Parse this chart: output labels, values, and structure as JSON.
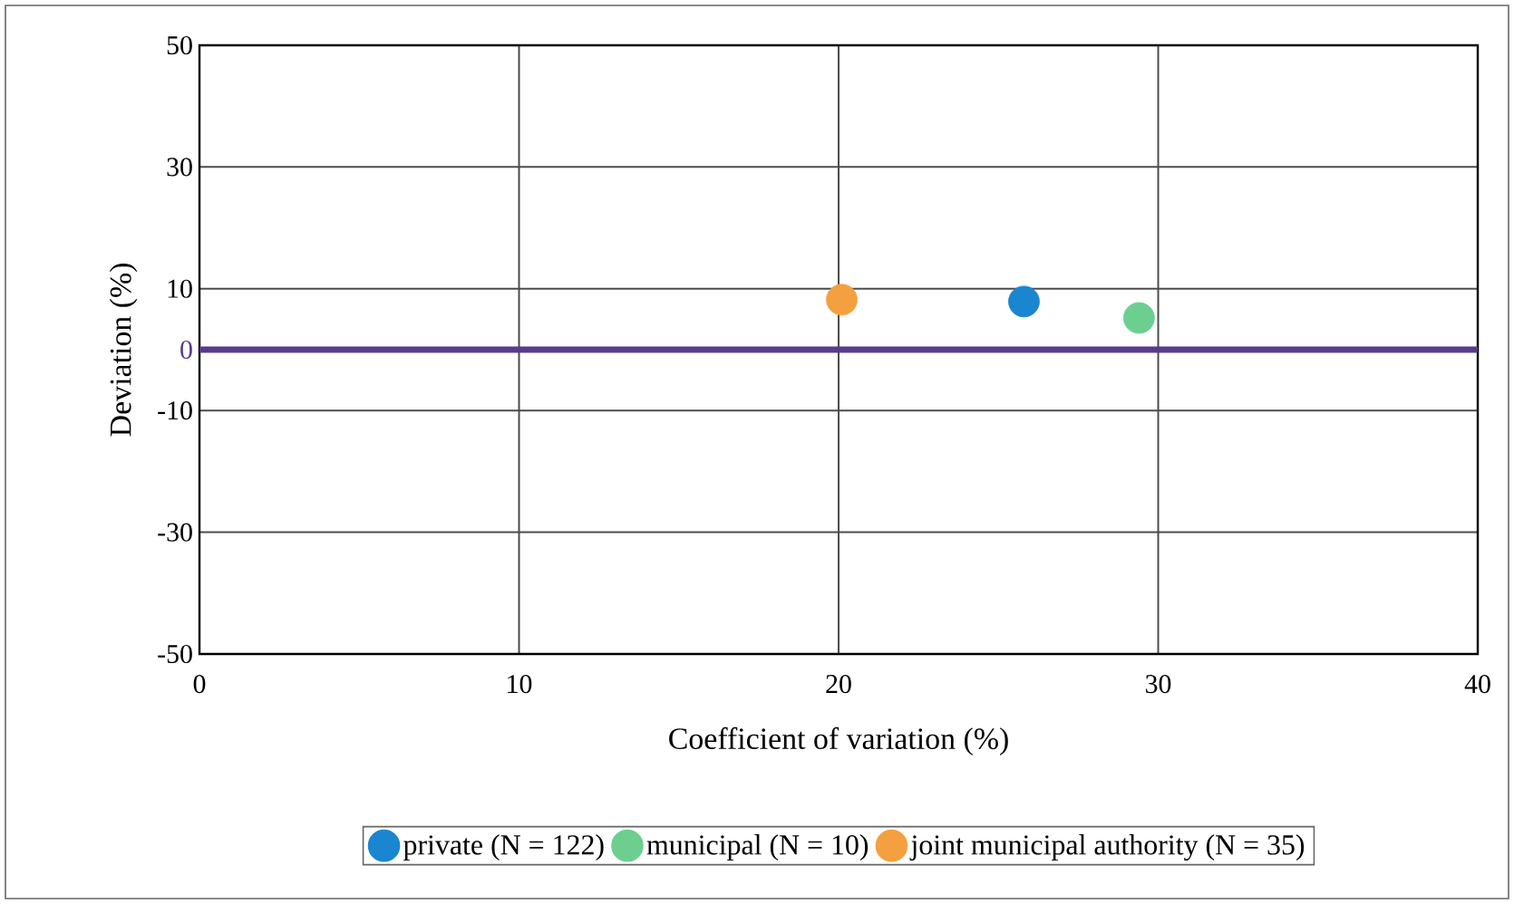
{
  "chart_data": {
    "type": "scatter",
    "xlabel": "Coefficient of variation (%)",
    "ylabel": "Deviation (%)",
    "xlim": [
      0,
      40
    ],
    "ylim": [
      -50,
      50
    ],
    "xticks": [
      0,
      10,
      20,
      30,
      40
    ],
    "yticks": [
      -50,
      -30,
      -10,
      10,
      30,
      50
    ],
    "grid": true,
    "legend": "bottom",
    "series": [
      {
        "name": "private (N = 122)",
        "color": "#1a86d0",
        "x": [
          25.8
        ],
        "values": [
          7.9
        ]
      },
      {
        "name": "municipal (N = 10)",
        "color": "#6ccf8f",
        "x": [
          29.4
        ],
        "values": [
          5.2
        ]
      },
      {
        "name": "joint municipal authority (N = 35)",
        "color": "#f5a040",
        "x": [
          20.1
        ],
        "values": [
          8.2
        ]
      }
    ],
    "ref_lines": [
      {
        "axis": "y",
        "value": 0,
        "label": "0",
        "color": "#5b3a8c"
      }
    ]
  }
}
